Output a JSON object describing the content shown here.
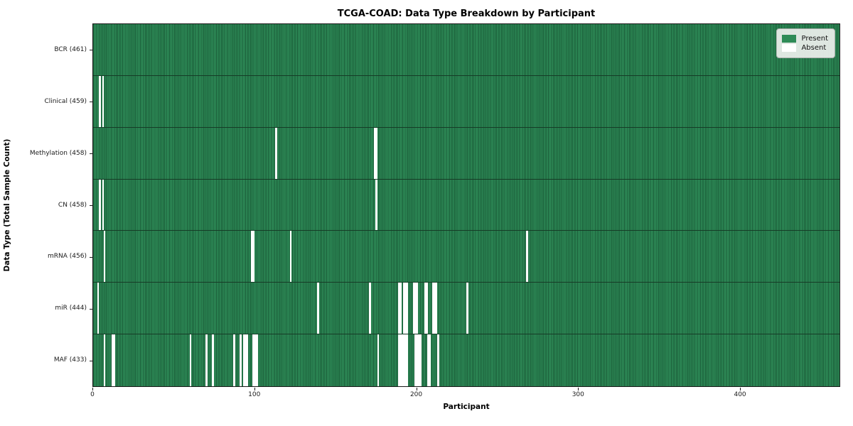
{
  "chart_data": {
    "type": "heatmap",
    "title": "TCGA-COAD: Data Type Breakdown by Participant",
    "xlabel": "Participant",
    "ylabel": "Data Type (Total Sample Count)",
    "x_ticks": [
      0,
      100,
      200,
      300,
      400
    ],
    "xlim": [
      0,
      461
    ],
    "n_participants": 461,
    "grid": false,
    "legend_position": "upper right",
    "legend": [
      {
        "label": "Present",
        "color": "#2e8b57"
      },
      {
        "label": "Absent",
        "color": "#ffffff"
      }
    ],
    "colors": {
      "bar_fill": "#2e8b57",
      "bar_edge": "#1a5c38",
      "row_divider": "#163b26",
      "absent": "#ffffff"
    },
    "rows": [
      {
        "label": "BCR (461)",
        "name": "BCR",
        "total": 461,
        "absent": []
      },
      {
        "label": "Clinical (459)",
        "name": "Clinical",
        "total": 459,
        "absent": [
          4,
          6
        ]
      },
      {
        "label": "Methylation (458)",
        "name": "Methylation",
        "total": 458,
        "absent": [
          113,
          174,
          175
        ]
      },
      {
        "label": "CN (458)",
        "name": "CN",
        "total": 458,
        "absent": [
          4,
          6,
          175
        ]
      },
      {
        "label": "mRNA (456)",
        "name": "mRNA",
        "total": 456,
        "absent": [
          7,
          98,
          99,
          122,
          268
        ]
      },
      {
        "label": "miR (444)",
        "name": "miR",
        "total": 444,
        "absent": [
          3,
          139,
          171,
          189,
          190,
          192,
          193,
          194,
          198,
          199,
          200,
          205,
          206,
          210,
          211,
          212,
          231
        ]
      },
      {
        "label": "MAF (433)",
        "name": "MAF",
        "total": 433,
        "absent": [
          7,
          12,
          13,
          60,
          70,
          74,
          87,
          91,
          93,
          94,
          95,
          99,
          100,
          101,
          176,
          189,
          190,
          191,
          192,
          193,
          194,
          199,
          200,
          201,
          202,
          207,
          208,
          213
        ]
      }
    ]
  }
}
